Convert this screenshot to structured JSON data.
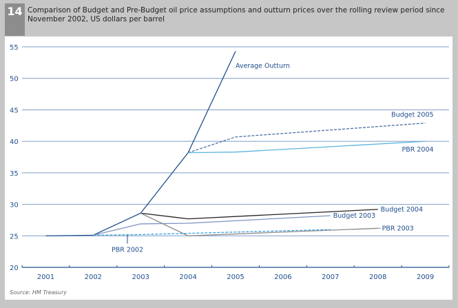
{
  "header": {
    "number": "14",
    "title": "Comparison of Budget and Pre-Budget oil price assumptions and outturn prices over the rolling review period since November 2002, US dollars per barrel"
  },
  "source": "Source: HM Treasury",
  "chart_data": {
    "type": "line",
    "title": "Comparison of Budget and Pre-Budget oil price assumptions and outturn prices over the rolling review period since November 2002, US dollars per barrel",
    "xlabel": "",
    "ylabel": "US dollars per barrel",
    "categories": [
      "2001",
      "2002",
      "2003",
      "2004",
      "2005",
      "2006",
      "2007",
      "2008",
      "2009"
    ],
    "yticks": [
      20,
      25,
      30,
      35,
      40,
      45,
      50,
      55
    ],
    "ylim": [
      20,
      55
    ],
    "grid": true,
    "series": [
      {
        "name": "Average Outturn",
        "color": "#1f4e8c",
        "dash": false,
        "points": [
          [
            2001,
            25.0
          ],
          [
            2002,
            25.1
          ],
          [
            2003,
            28.6
          ],
          [
            2004,
            38.2
          ],
          [
            2005,
            54.3
          ]
        ]
      },
      {
        "name": "Budget 2005",
        "color": "#4a6fa5",
        "dash": true,
        "points": [
          [
            2004,
            38.2
          ],
          [
            2005,
            40.7
          ],
          [
            2009,
            42.9
          ]
        ]
      },
      {
        "name": "PBR 2004",
        "color": "#5ab4e0",
        "dash": false,
        "points": [
          [
            2004,
            38.2
          ],
          [
            2005,
            38.3
          ],
          [
            2009,
            40.0
          ]
        ]
      },
      {
        "name": "Budget 2004",
        "color": "#222222",
        "dash": false,
        "points": [
          [
            2003,
            28.6
          ],
          [
            2004,
            27.7
          ],
          [
            2008,
            29.2
          ]
        ]
      },
      {
        "name": "Budget 2003",
        "color": "#7b93c4",
        "dash": false,
        "points": [
          [
            2002,
            25.1
          ],
          [
            2003,
            26.9
          ],
          [
            2004,
            27.0
          ],
          [
            2007,
            28.2
          ]
        ]
      },
      {
        "name": "PBR 2003",
        "color": "#8c8c8c",
        "dash": false,
        "points": [
          [
            2003,
            28.6
          ],
          [
            2004,
            25.0
          ],
          [
            2008,
            26.2
          ]
        ]
      },
      {
        "name": "PBR 2002",
        "color": "#3aa0d8",
        "dash": true,
        "points": [
          [
            2002,
            25.1
          ],
          [
            2003,
            25.2
          ],
          [
            2007,
            26.0
          ]
        ]
      }
    ],
    "annotations": [
      {
        "text": "Average Outturn",
        "series": "Average Outturn"
      },
      {
        "text": "Budget 2005",
        "series": "Budget 2005"
      },
      {
        "text": "PBR 2004",
        "series": "PBR 2004"
      },
      {
        "text": "Budget 2004",
        "series": "Budget 2004"
      },
      {
        "text": "Budget 2003",
        "series": "Budget 2003"
      },
      {
        "text": "PBR 2003",
        "series": "PBR 2003"
      },
      {
        "text": "PBR 2002",
        "series": "PBR 2002"
      }
    ]
  }
}
